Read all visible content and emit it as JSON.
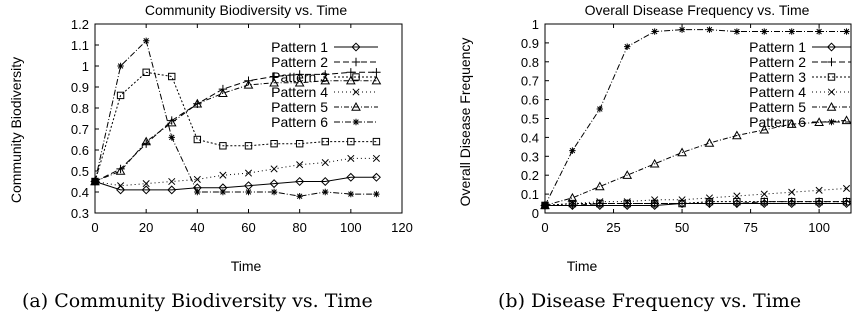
{
  "captions": {
    "a": "(a) Community Biodiversity vs. Time",
    "b": "(b) Disease Frequency vs. Time"
  },
  "chart_data": [
    {
      "type": "line",
      "title": "Community Biodiversity vs. Time",
      "xlabel": "Time",
      "ylabel": "Community Biodiversity",
      "xlim": [
        0,
        120
      ],
      "ylim": [
        0.3,
        1.2
      ],
      "xticks": [
        "0",
        "20",
        "40",
        "60",
        "80",
        "100",
        "120"
      ],
      "yticks": [
        "0.3",
        "0.4",
        "0.5",
        "0.6",
        "0.7",
        "0.8",
        "0.9",
        "1",
        "1.1",
        "1.2"
      ],
      "grid": false,
      "legend": "top-right",
      "x": [
        0,
        10,
        20,
        30,
        40,
        50,
        60,
        70,
        80,
        90,
        100,
        110
      ],
      "series": [
        {
          "name": "Pattern 1",
          "marker": "diamond",
          "dash": "",
          "values": [
            0.45,
            0.41,
            0.41,
            0.41,
            0.42,
            0.42,
            0.43,
            0.44,
            0.45,
            0.45,
            0.47,
            0.47
          ]
        },
        {
          "name": "Pattern 2",
          "marker": "plus",
          "dash": "6,3",
          "values": [
            0.45,
            0.51,
            0.63,
            0.74,
            0.82,
            0.89,
            0.93,
            0.95,
            0.96,
            0.96,
            0.97,
            0.97
          ]
        },
        {
          "name": "Pattern 3",
          "marker": "square",
          "dash": "2,2",
          "values": [
            0.45,
            0.86,
            0.97,
            0.95,
            0.65,
            0.62,
            0.62,
            0.63,
            0.63,
            0.64,
            0.64,
            0.64
          ]
        },
        {
          "name": "Pattern 4",
          "marker": "x",
          "dash": "1,3",
          "values": [
            0.45,
            0.43,
            0.44,
            0.45,
            0.46,
            0.48,
            0.49,
            0.51,
            0.53,
            0.54,
            0.56,
            0.56
          ]
        },
        {
          "name": "Pattern 5",
          "marker": "triangle",
          "dash": "5,2,1,2",
          "values": [
            0.45,
            0.5,
            0.64,
            0.73,
            0.82,
            0.87,
            0.91,
            0.92,
            0.92,
            0.93,
            0.93,
            0.93
          ]
        },
        {
          "name": "Pattern 6",
          "marker": "star",
          "dash": "6,2,1,2",
          "values": [
            0.45,
            1.0,
            1.12,
            0.66,
            0.4,
            0.4,
            0.4,
            0.4,
            0.38,
            0.4,
            0.39,
            0.39
          ]
        }
      ]
    },
    {
      "type": "line",
      "title": "Overall Disease Frequency vs. Time",
      "xlabel": "Time",
      "ylabel": "Overall Disease Frequency",
      "xlim": [
        0,
        112
      ],
      "ylim": [
        0,
        1
      ],
      "xticks": [
        "0",
        "25",
        "50",
        "75",
        "100"
      ],
      "yticks": [
        "0",
        "0.1",
        "0.2",
        "0.3",
        "0.4",
        "0.5",
        "0.6",
        "0.7",
        "0.8",
        "0.9",
        "1"
      ],
      "grid": false,
      "legend": "top-right",
      "x": [
        0,
        10,
        20,
        30,
        40,
        50,
        60,
        70,
        80,
        90,
        100,
        110
      ],
      "series": [
        {
          "name": "Pattern 1",
          "marker": "diamond",
          "dash": "",
          "values": [
            0.04,
            0.04,
            0.04,
            0.04,
            0.04,
            0.05,
            0.05,
            0.05,
            0.05,
            0.05,
            0.05,
            0.05
          ]
        },
        {
          "name": "Pattern 2",
          "marker": "plus",
          "dash": "6,3",
          "values": [
            0.04,
            0.04,
            0.05,
            0.05,
            0.05,
            0.05,
            0.05,
            0.05,
            0.06,
            0.06,
            0.06,
            0.06
          ]
        },
        {
          "name": "Pattern 3",
          "marker": "square",
          "dash": "2,2",
          "values": [
            0.04,
            0.05,
            0.05,
            0.05,
            0.05,
            0.05,
            0.06,
            0.06,
            0.06,
            0.06,
            0.06,
            0.06
          ]
        },
        {
          "name": "Pattern 4",
          "marker": "x",
          "dash": "1,3",
          "values": [
            0.04,
            0.05,
            0.06,
            0.06,
            0.07,
            0.07,
            0.08,
            0.09,
            0.1,
            0.11,
            0.12,
            0.13
          ]
        },
        {
          "name": "Pattern 5",
          "marker": "triangle",
          "dash": "5,2,1,2",
          "values": [
            0.04,
            0.08,
            0.14,
            0.2,
            0.26,
            0.32,
            0.37,
            0.41,
            0.44,
            0.47,
            0.48,
            0.49
          ]
        },
        {
          "name": "Pattern 6",
          "marker": "star",
          "dash": "6,2,1,2",
          "values": [
            0.04,
            0.33,
            0.55,
            0.88,
            0.96,
            0.97,
            0.97,
            0.96,
            0.96,
            0.96,
            0.96,
            0.96
          ]
        }
      ]
    }
  ]
}
